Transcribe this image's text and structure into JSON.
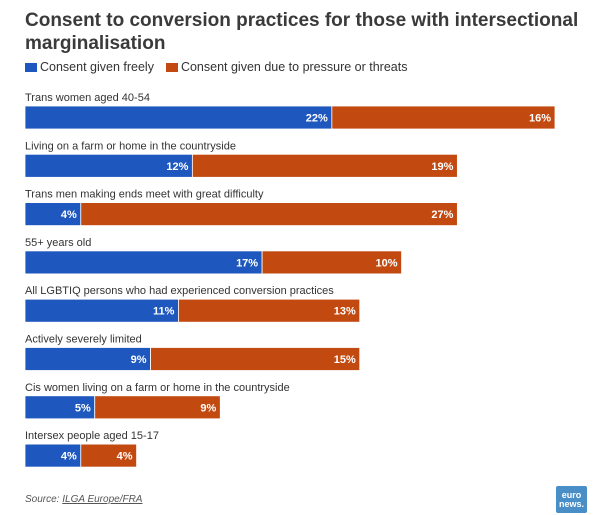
{
  "title": "Consent to conversion practices for those with intersectional marginalisation",
  "legend": [
    {
      "label": "Consent given freely",
      "color": "#1e57be"
    },
    {
      "label": "Consent given due to pressure or threats",
      "color": "#c24a10"
    }
  ],
  "source": {
    "prefix": "Source: ",
    "text": "ILGA Europe/FRA"
  },
  "logo": {
    "line1": "euro",
    "line2": "news."
  },
  "chart_data": {
    "type": "bar",
    "orientation": "horizontal",
    "stacked": true,
    "categories": [
      "Trans women aged 40-54",
      "Living on a farm or home in the countryside",
      "Trans men making ends meet with great difficulty",
      "55+ years old",
      "All LGBTIQ persons who had experienced conversion practices",
      "Actively severely limited",
      "Cis women living on a farm or home in the countryside",
      "Intersex people aged 15-17"
    ],
    "series": [
      {
        "name": "Consent given freely",
        "color": "#1e57be",
        "values": [
          22,
          12,
          4,
          17,
          11,
          9,
          5,
          4
        ]
      },
      {
        "name": "Consent given due to pressure or threats",
        "color": "#c24a10",
        "values": [
          16,
          19,
          27,
          10,
          13,
          15,
          9,
          4
        ]
      }
    ],
    "value_suffix": "%",
    "xlim": [
      0,
      38
    ],
    "grid": false,
    "legend_position": "top-left"
  }
}
